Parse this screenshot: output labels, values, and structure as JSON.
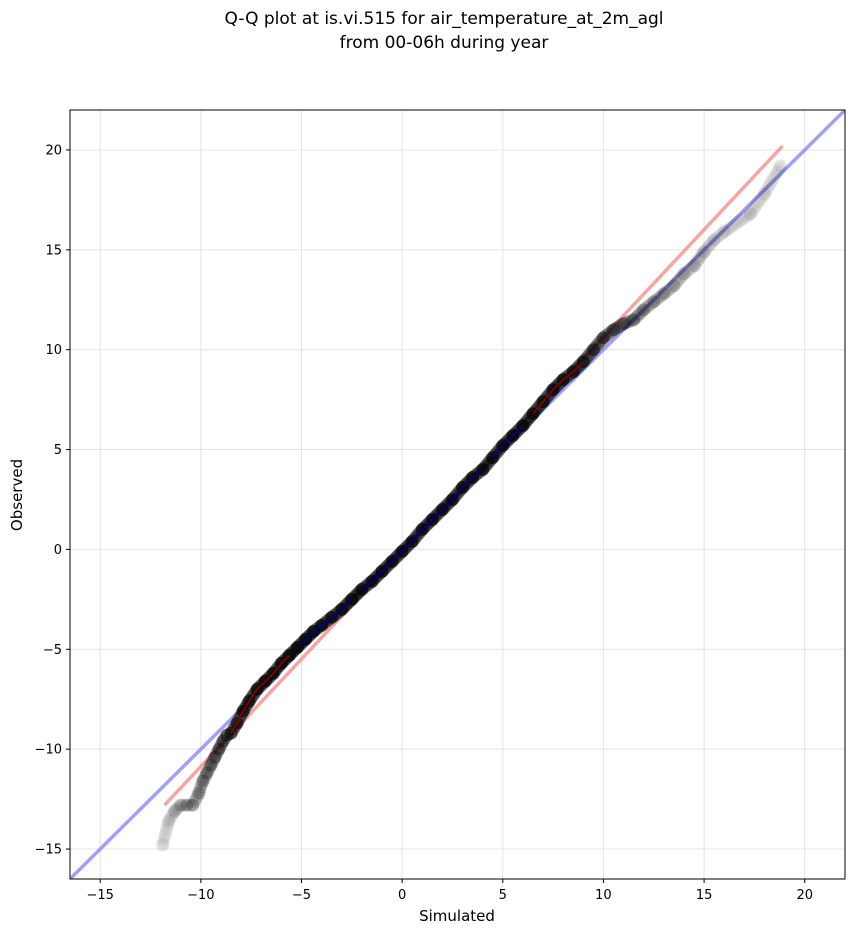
{
  "chart_data": {
    "type": "scatter",
    "title": [
      "Q-Q plot at is.vi.515 for air_temperature_at_2m_agl",
      "from 00-06h during year"
    ],
    "xlabel": "Simulated",
    "ylabel": "Observed",
    "xlim": [
      -16.5,
      22
    ],
    "ylim": [
      -16.5,
      22
    ],
    "x_ticks": [
      -15,
      -10,
      -5,
      0,
      5,
      10,
      15,
      20
    ],
    "y_ticks": [
      -15,
      -10,
      -5,
      0,
      5,
      10,
      15,
      20
    ],
    "x_tick_labels": [
      "−15",
      "−10",
      "−5",
      "0",
      "5",
      "10",
      "15",
      "20"
    ],
    "y_tick_labels": [
      "−15",
      "−10",
      "−5",
      "0",
      "5",
      "10",
      "15",
      "20"
    ],
    "grid": true,
    "colors": {
      "points": "#000000",
      "fit_line": "#f08080",
      "identity_line": "#8080f0",
      "dense_red": "#8b0000",
      "dense_blue": "#00008b"
    },
    "identity_line": {
      "x": [
        -16.5,
        22
      ],
      "y": [
        -16.5,
        22
      ]
    },
    "fit_line": {
      "x": [
        -11.8,
        18.9
      ],
      "y": [
        -12.8,
        20.2
      ]
    },
    "points": {
      "x": [
        -11.9,
        -11.6,
        -11.3,
        -11.0,
        -10.7,
        -10.4,
        -10.1,
        -9.9,
        -9.7,
        -9.5,
        -9.3,
        -9.1,
        -8.9,
        -8.7,
        -8.5,
        -8.2,
        -7.9,
        -7.6,
        -7.2,
        -6.8,
        -6.4,
        -6.0,
        -5.6,
        -5.2,
        -4.8,
        -4.4,
        -4.0,
        -3.5,
        -3.0,
        -2.5,
        -2.0,
        -1.5,
        -1.0,
        -0.5,
        0.0,
        0.5,
        1.0,
        1.5,
        2.0,
        2.5,
        3.0,
        3.5,
        4.0,
        4.5,
        5.0,
        5.5,
        6.0,
        6.5,
        7.0,
        7.5,
        8.0,
        8.5,
        9.0,
        9.5,
        10.0,
        10.5,
        11.0,
        11.5,
        12.0,
        12.5,
        13.0,
        13.5,
        14.0,
        14.5,
        15.0,
        15.5,
        16.0,
        17.3,
        18.0,
        18.8
      ],
      "y": [
        -14.8,
        -13.6,
        -13.1,
        -12.8,
        -12.8,
        -12.8,
        -12.2,
        -11.6,
        -11.2,
        -10.8,
        -10.4,
        -10.0,
        -9.6,
        -9.3,
        -9.2,
        -8.7,
        -8.1,
        -7.6,
        -7.0,
        -6.6,
        -6.2,
        -5.7,
        -5.3,
        -4.9,
        -4.5,
        -4.1,
        -3.8,
        -3.4,
        -3.0,
        -2.5,
        -2.0,
        -1.6,
        -1.1,
        -0.6,
        -0.1,
        0.4,
        1.0,
        1.5,
        2.0,
        2.5,
        3.1,
        3.6,
        4.0,
        4.6,
        5.2,
        5.7,
        6.2,
        6.8,
        7.4,
        8.0,
        8.5,
        8.9,
        9.4,
        10.0,
        10.6,
        11.0,
        11.3,
        11.5,
        12.0,
        12.4,
        12.8,
        13.2,
        13.8,
        14.2,
        14.9,
        15.5,
        15.9,
        16.8,
        17.8,
        19.2
      ],
      "opacity": [
        0.1,
        0.12,
        0.18,
        0.22,
        0.25,
        0.28,
        0.3,
        0.32,
        0.35,
        0.38,
        0.42,
        0.45,
        0.5,
        0.55,
        0.6,
        0.65,
        0.7,
        0.7,
        0.72,
        0.75,
        0.75,
        0.75,
        0.75,
        0.75,
        0.75,
        0.75,
        0.75,
        0.75,
        0.75,
        0.75,
        0.75,
        0.75,
        0.75,
        0.75,
        0.75,
        0.75,
        0.75,
        0.75,
        0.75,
        0.75,
        0.75,
        0.75,
        0.75,
        0.75,
        0.75,
        0.75,
        0.75,
        0.75,
        0.75,
        0.75,
        0.75,
        0.7,
        0.65,
        0.6,
        0.55,
        0.5,
        0.42,
        0.35,
        0.3,
        0.28,
        0.25,
        0.22,
        0.2,
        0.18,
        0.16,
        0.14,
        0.12,
        0.12,
        0.1,
        0.1
      ]
    }
  }
}
